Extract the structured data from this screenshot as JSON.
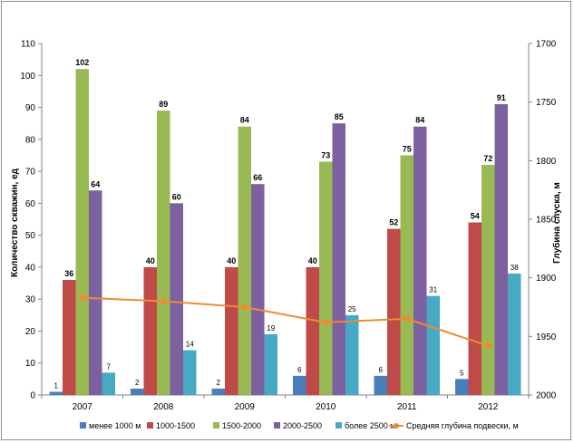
{
  "chart_data": {
    "type": "bar",
    "categories": [
      "2007",
      "2008",
      "2009",
      "2010",
      "2011",
      "2012"
    ],
    "series": [
      {
        "name": "менее 1000 м",
        "color": "#4a7ebb",
        "values": [
          1,
          2,
          2,
          6,
          6,
          5
        ]
      },
      {
        "name": "1000-1500",
        "color": "#be4b48",
        "values": [
          36,
          40,
          40,
          40,
          52,
          54
        ]
      },
      {
        "name": "1500-2000",
        "color": "#98b954",
        "values": [
          102,
          89,
          84,
          73,
          75,
          72
        ]
      },
      {
        "name": "2000-2500",
        "color": "#7d60a0",
        "values": [
          64,
          60,
          66,
          85,
          84,
          91
        ]
      },
      {
        "name": "более 2500 м",
        "color": "#46aac5",
        "values": [
          7,
          14,
          19,
          25,
          31,
          38
        ]
      }
    ],
    "line_series": {
      "name": "Средняя глубина подвески, м",
      "color": "#f08a34",
      "axis": "right",
      "values": [
        1917,
        1920,
        1925,
        1938,
        1935,
        1958
      ]
    },
    "ylabel": "Количество скважин, ед",
    "ylabel_right": "Глубина спуска, м",
    "ylim": [
      0,
      110
    ],
    "yticks": [
      "0",
      "10",
      "20",
      "30",
      "40",
      "50",
      "60",
      "70",
      "80",
      "90",
      "100",
      "110"
    ],
    "ylim_right": [
      2000,
      1700
    ],
    "yticks_right": [
      "2000",
      "1950",
      "1900",
      "1850",
      "1800",
      "1750",
      "1700"
    ],
    "right_axis_reversed": true,
    "grid": false,
    "legend_position": "bottom"
  }
}
